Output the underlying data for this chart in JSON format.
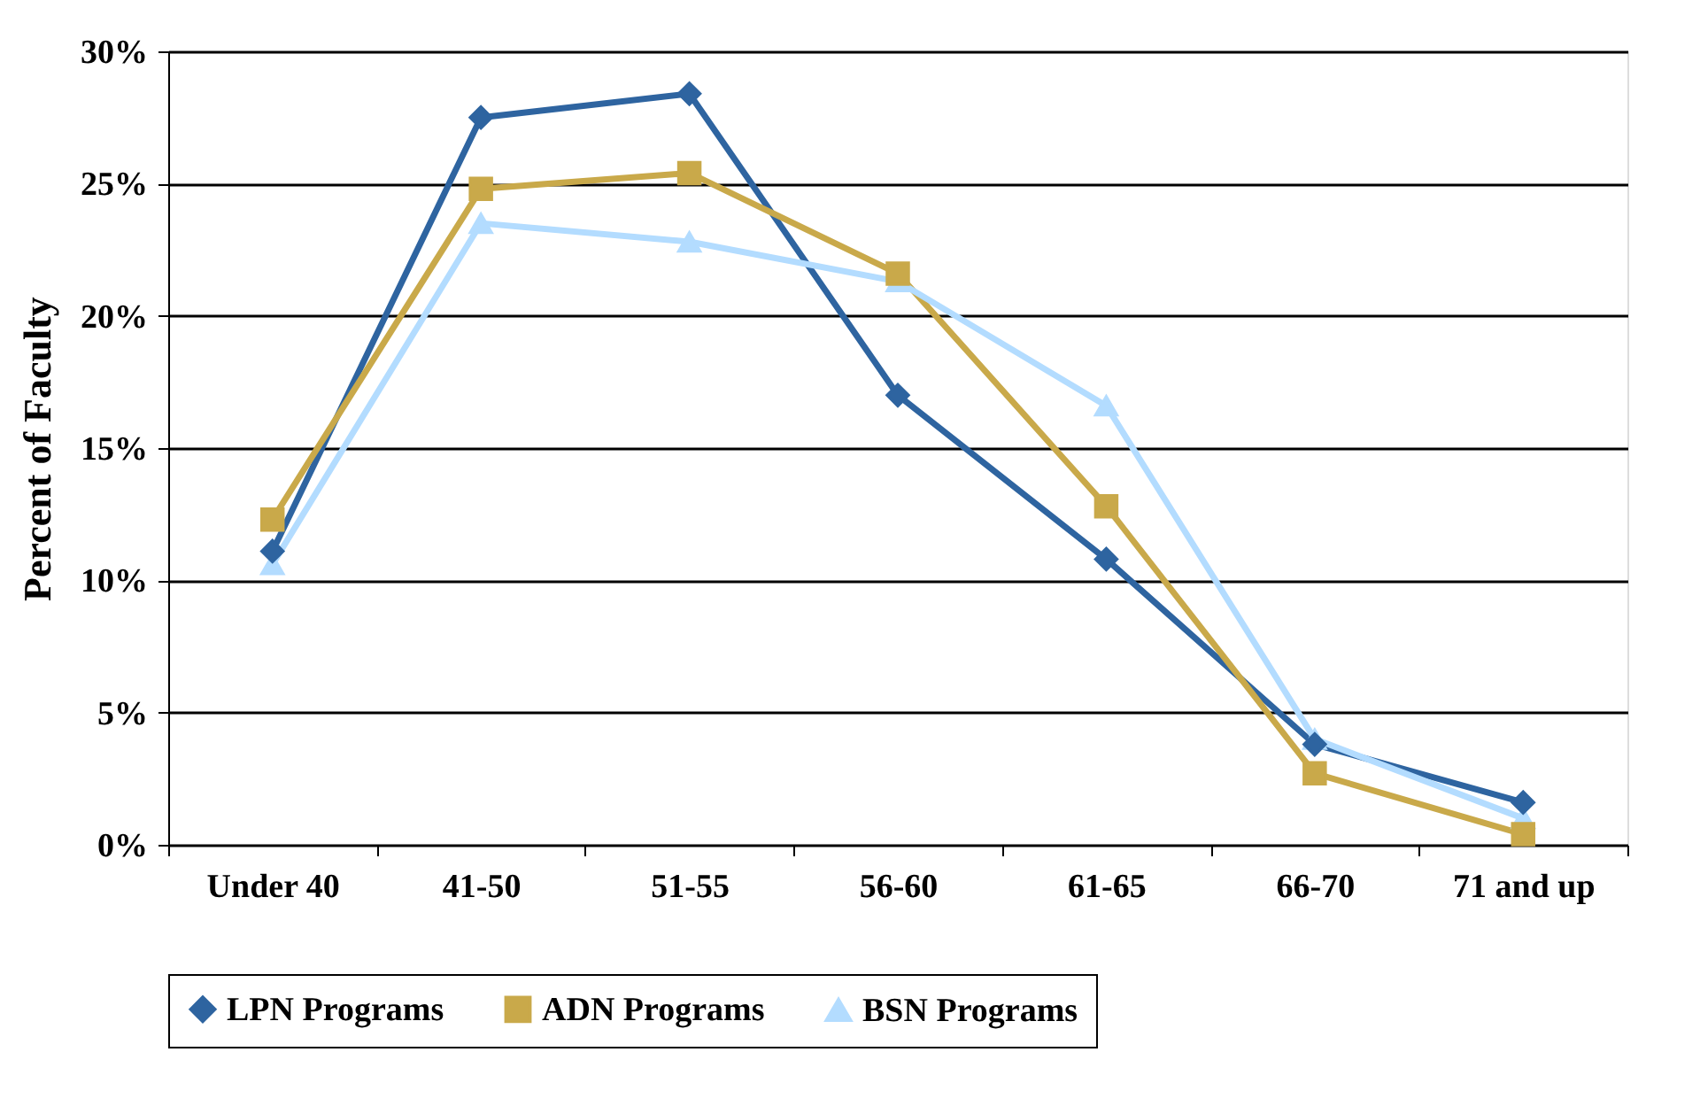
{
  "chart_data": {
    "type": "line",
    "ylabel": "Percent of Faculty",
    "categories": [
      "Under 40",
      "41-50",
      "51-55",
      "56-60",
      "61-65",
      "66-70",
      "71 and up"
    ],
    "series": [
      {
        "name": "LPN Programs",
        "color": "#2e64a0",
        "marker": "diamond",
        "values": [
          11.1,
          27.5,
          28.4,
          17.0,
          10.8,
          3.8,
          1.6
        ]
      },
      {
        "name": "ADN Programs",
        "color": "#c9a94a",
        "marker": "square",
        "values": [
          12.3,
          24.8,
          25.4,
          21.6,
          12.8,
          2.7,
          0.4
        ]
      },
      {
        "name": "BSN Programs",
        "color": "#b3dcff",
        "marker": "triangle",
        "values": [
          10.6,
          23.5,
          22.8,
          21.3,
          16.6,
          4.0,
          1.0
        ]
      }
    ],
    "ylim": [
      0,
      30
    ],
    "yticks": [
      {
        "value": 0,
        "label": "0%"
      },
      {
        "value": 5,
        "label": "5%"
      },
      {
        "value": 10,
        "label": "10%"
      },
      {
        "value": 15,
        "label": "15%"
      },
      {
        "value": 20,
        "label": "20%"
      },
      {
        "value": 25,
        "label": "25%"
      },
      {
        "value": 30,
        "label": "30%"
      }
    ],
    "grid": "y",
    "legend": "bottom",
    "line_style": "solid"
  }
}
